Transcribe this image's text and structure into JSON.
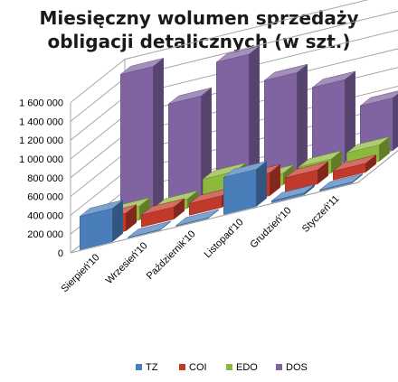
{
  "chart_data": {
    "type": "bar",
    "subtype": "3d-clustered-depth",
    "title_lines": [
      "Miesięczny wolumen sprzedaży",
      "obligacji detalicznych (w szt.)"
    ],
    "categories": [
      "Sierpień'10",
      "Wrzesień'10",
      "Październik'10",
      "Listopad'10",
      "Grudzień'10",
      "Styczeń'11"
    ],
    "y_ticks": [
      "0",
      "200 000",
      "400 000",
      "600 000",
      "800 000",
      "1 000 000",
      "1 200 000",
      "1 400 000",
      "1 600 000"
    ],
    "ylim": [
      0,
      1600000
    ],
    "grid": true,
    "legend_position": "bottom",
    "series": [
      {
        "name": "TZ",
        "color": "#4a7ebb",
        "values": [
          355000,
          5000,
          5000,
          395000,
          20000,
          10000
        ]
      },
      {
        "name": "COI",
        "color": "#c0392b",
        "values": [
          190000,
          130000,
          125000,
          245000,
          150000,
          95000
        ]
      },
      {
        "name": "EDO",
        "color": "#8db83e",
        "values": [
          150000,
          100000,
          270000,
          125000,
          150000,
          175000
        ]
      },
      {
        "name": "DOS",
        "color": "#8064a2",
        "values": [
          1520000,
          1080000,
          1400000,
          1080000,
          880000,
          560000
        ]
      }
    ]
  }
}
